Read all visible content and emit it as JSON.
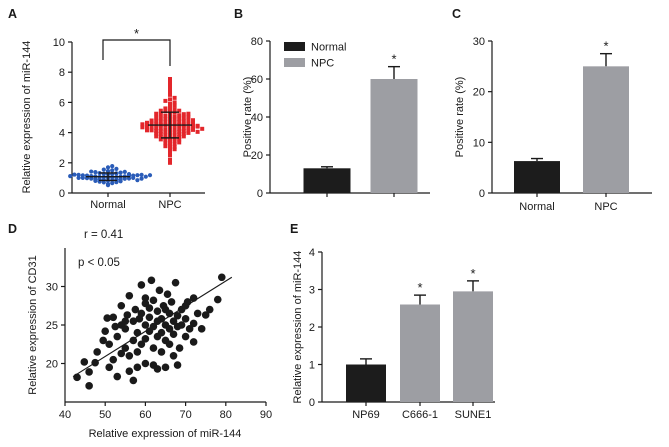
{
  "chart_data": [
    {
      "panel": "A",
      "type": "scatter",
      "ylabel": "Relative expression of miR-144",
      "ylim": [
        0,
        10
      ],
      "yticks": [
        0,
        2,
        4,
        6,
        8,
        10
      ],
      "categories": [
        "Normal",
        "NPC"
      ],
      "series": [
        {
          "color": "#2a5cb8",
          "mean": 1.08,
          "error": 0.25,
          "values": [
            0.52,
            0.6,
            0.65,
            0.7,
            0.72,
            0.75,
            0.78,
            0.8,
            0.82,
            0.84,
            0.86,
            0.88,
            0.9,
            0.9,
            0.92,
            0.94,
            0.95,
            0.96,
            0.98,
            1.0,
            1.0,
            1.02,
            1.03,
            1.05,
            1.05,
            1.06,
            1.08,
            1.1,
            1.1,
            1.12,
            1.13,
            1.15,
            1.15,
            1.17,
            1.18,
            1.2,
            1.2,
            1.22,
            1.24,
            1.25,
            1.27,
            1.3,
            1.32,
            1.35,
            1.38,
            1.4,
            1.42,
            1.45,
            1.5,
            1.55,
            1.6,
            1.7,
            1.78,
            0.85,
            1.0,
            1.08,
            1.12,
            0.95,
            1.18,
            1.25
          ]
        },
        {
          "color": "#e3262b",
          "mean": 4.5,
          "error": 0.85,
          "values": [
            2.0,
            2.2,
            2.5,
            2.7,
            2.8,
            2.9,
            3.0,
            3.05,
            3.1,
            3.2,
            3.25,
            3.3,
            3.35,
            3.4,
            3.45,
            3.5,
            3.55,
            3.6,
            3.62,
            3.65,
            3.7,
            3.72,
            3.75,
            3.8,
            3.82,
            3.85,
            3.88,
            3.9,
            3.92,
            3.95,
            3.98,
            4.0,
            4.0,
            4.02,
            4.05,
            4.08,
            4.1,
            4.1,
            4.12,
            4.15,
            4.18,
            4.2,
            4.2,
            4.22,
            4.25,
            4.28,
            4.3,
            4.3,
            4.32,
            4.35,
            4.38,
            4.4,
            4.4,
            4.42,
            4.45,
            4.48,
            4.5,
            4.5,
            4.52,
            4.55,
            4.58,
            4.6,
            4.6,
            4.62,
            4.65,
            4.68,
            4.7,
            4.7,
            4.72,
            4.75,
            4.78,
            4.8,
            4.8,
            4.82,
            4.85,
            4.88,
            4.9,
            4.92,
            4.95,
            4.98,
            5.0,
            5.02,
            5.05,
            5.08,
            5.1,
            5.15,
            5.2,
            5.22,
            5.25,
            5.3,
            5.35,
            5.4,
            5.45,
            5.5,
            5.55,
            5.6,
            5.7,
            5.8,
            5.9,
            6.0,
            6.1,
            6.2,
            6.3,
            6.5,
            6.7,
            6.9,
            7.1,
            7.3,
            7.55,
            4.35,
            4.45,
            4.55,
            4.65,
            4.25,
            4.15,
            3.75,
            5.25,
            5.45,
            4.05,
            3.55
          ]
        }
      ],
      "significance_mark": "*"
    },
    {
      "panel": "B",
      "type": "bar",
      "ylabel": "Positive rate (%)",
      "ylim": [
        0,
        80
      ],
      "yticks": [
        0,
        20,
        40,
        60,
        80
      ],
      "categories": [
        "Normal",
        "NPC"
      ],
      "values": [
        13,
        60
      ],
      "errors": [
        0.8,
        6.5
      ],
      "colors": [
        "#1c1c1c",
        "#9d9ea3"
      ],
      "legend": "top-left",
      "significant": [
        false,
        true
      ],
      "significance_mark": "*"
    },
    {
      "panel": "C",
      "type": "bar",
      "ylabel": "Positive rate (%)",
      "ylim": [
        0,
        30
      ],
      "yticks": [
        0,
        10,
        20,
        30
      ],
      "categories": [
        "Normal",
        "NPC"
      ],
      "values": [
        6.3,
        25
      ],
      "errors": [
        0.5,
        2.5
      ],
      "colors": [
        "#1c1c1c",
        "#9d9ea3"
      ],
      "significant": [
        false,
        true
      ],
      "significance_mark": "*"
    },
    {
      "panel": "D",
      "type": "scatter",
      "xlabel": "Relative expression of miR-144",
      "ylabel": "Relative expression of CD31",
      "xlim": [
        40,
        90
      ],
      "xticks": [
        40,
        50,
        60,
        70,
        80,
        90
      ],
      "ylim": [
        15,
        35
      ],
      "yticks": [
        20,
        25,
        30
      ],
      "color": "#1a1a1a",
      "annotations": [
        "r = 0.41",
        "p < 0.05"
      ],
      "fit_line": [
        [
          42,
          18.3
        ],
        [
          81.5,
          31.2
        ]
      ],
      "points": [
        [
          43,
          18.2
        ],
        [
          46,
          17.1
        ],
        [
          44.8,
          20.2
        ],
        [
          47.5,
          20.1
        ],
        [
          46,
          18.9
        ],
        [
          49.5,
          23
        ],
        [
          50,
          24.2
        ],
        [
          50.5,
          25.9
        ],
        [
          51,
          22.5
        ],
        [
          52,
          26
        ],
        [
          52.5,
          24.8
        ],
        [
          52,
          20.5
        ],
        [
          53,
          23.5
        ],
        [
          54,
          27.5
        ],
        [
          54,
          25
        ],
        [
          55,
          22
        ],
        [
          55,
          24.5
        ],
        [
          55.5,
          26.3
        ],
        [
          56,
          21
        ],
        [
          56,
          28.8
        ],
        [
          57,
          23
        ],
        [
          57,
          25.5
        ],
        [
          57.5,
          27
        ],
        [
          58,
          19.5
        ],
        [
          58,
          24
        ],
        [
          58.5,
          25.8
        ],
        [
          59,
          22.5
        ],
        [
          59,
          26.5
        ],
        [
          60,
          20
        ],
        [
          60,
          23.2
        ],
        [
          60,
          25
        ],
        [
          60,
          27.8
        ],
        [
          61,
          24.2
        ],
        [
          61,
          26
        ],
        [
          61.5,
          30.8
        ],
        [
          62,
          22
        ],
        [
          62,
          24.8
        ],
        [
          62,
          28.2
        ],
        [
          63,
          23.5
        ],
        [
          63,
          25.5
        ],
        [
          63,
          26.8
        ],
        [
          63.5,
          29.5
        ],
        [
          64,
          21.5
        ],
        [
          64,
          24
        ],
        [
          64,
          25.8
        ],
        [
          64.5,
          27.5
        ],
        [
          65,
          19.5
        ],
        [
          65,
          23
        ],
        [
          65,
          25
        ],
        [
          65.5,
          29
        ],
        [
          66,
          22.5
        ],
        [
          66,
          24.5
        ],
        [
          66,
          26.5
        ],
        [
          66.5,
          28
        ],
        [
          67,
          21
        ],
        [
          67,
          23.8
        ],
        [
          67,
          25.5
        ],
        [
          67.5,
          30.5
        ],
        [
          68,
          24.8
        ],
        [
          68,
          26.2
        ],
        [
          68.5,
          22
        ],
        [
          69,
          25
        ],
        [
          69,
          27
        ],
        [
          70,
          23.5
        ],
        [
          70,
          25.8
        ],
        [
          70.5,
          28
        ],
        [
          71,
          24.5
        ],
        [
          72,
          25.2
        ],
        [
          72,
          22.8
        ],
        [
          73,
          26.5
        ],
        [
          74,
          24.5
        ],
        [
          75,
          26.3
        ],
        [
          76,
          27
        ],
        [
          78,
          28.3
        ],
        [
          79,
          31.2
        ],
        [
          53,
          18.3
        ],
        [
          56,
          19
        ],
        [
          58,
          21.5
        ],
        [
          62,
          19.8
        ],
        [
          48,
          21.5
        ],
        [
          51,
          19.5
        ],
        [
          54,
          21.3
        ],
        [
          57,
          17.8
        ],
        [
          65,
          27
        ],
        [
          60,
          28.5
        ],
        [
          59,
          30.2
        ],
        [
          70,
          27.5
        ],
        [
          72,
          28.5
        ],
        [
          68,
          19.8
        ],
        [
          63,
          19.3
        ],
        [
          55,
          25.5
        ],
        [
          61,
          27.2
        ]
      ]
    },
    {
      "panel": "E",
      "type": "bar",
      "ylabel": "Relative expression of miR-144",
      "ylim": [
        0,
        4
      ],
      "yticks": [
        0,
        1,
        2,
        3,
        4
      ],
      "categories": [
        "NP69",
        "C666-1",
        "SUNE1"
      ],
      "values": [
        1.0,
        2.6,
        2.95
      ],
      "errors": [
        0.15,
        0.25,
        0.28
      ],
      "colors": [
        "#1c1c1c",
        "#9d9ea3",
        "#9d9ea3"
      ],
      "significant": [
        false,
        true,
        true
      ],
      "significance_mark": "*"
    }
  ]
}
